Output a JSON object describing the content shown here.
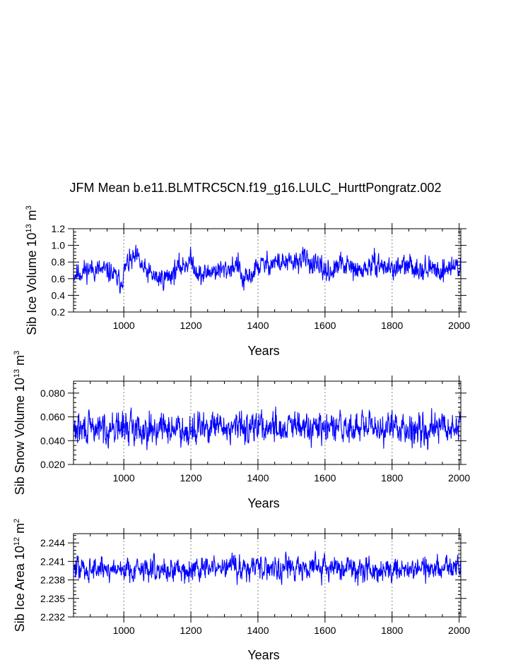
{
  "title": "JFM Mean b.e11.BLMTRC5CN.f19_g16.LULC_HurttPongratz.002",
  "line_color": "#0000ff",
  "grid_color": "#999999",
  "chart_data": [
    {
      "type": "line",
      "series_name": "Sib Ice Volume",
      "xlabel": "Years",
      "ylabel_base": "Sib Ice Volume 10",
      "ylabel_exp": "13",
      "ylabel_unit": " m",
      "ylabel_unit_exp": "3",
      "xlim": [
        850,
        2005
      ],
      "ylim": [
        0.2,
        1.2
      ],
      "xticks": [
        1000,
        1200,
        1400,
        1600,
        1800,
        2000
      ],
      "xtick_labels": [
        "1000",
        "1200",
        "1400",
        "1600",
        "1800",
        "2000"
      ],
      "yticks": [
        0.2,
        0.4,
        0.6,
        0.8,
        1.0,
        1.2
      ],
      "ytick_labels": [
        "0.2",
        "0.4",
        "0.6",
        "0.8",
        "1.0",
        "1.2"
      ],
      "anchors": [
        [
          850,
          0.65
        ],
        [
          900,
          0.72
        ],
        [
          960,
          0.68
        ],
        [
          990,
          0.55
        ],
        [
          1010,
          0.78
        ],
        [
          1040,
          0.85
        ],
        [
          1060,
          0.7
        ],
        [
          1100,
          0.6
        ],
        [
          1130,
          0.62
        ],
        [
          1160,
          0.72
        ],
        [
          1200,
          0.82
        ],
        [
          1230,
          0.62
        ],
        [
          1260,
          0.7
        ],
        [
          1300,
          0.7
        ],
        [
          1340,
          0.78
        ],
        [
          1355,
          0.55
        ],
        [
          1375,
          0.62
        ],
        [
          1400,
          0.75
        ],
        [
          1450,
          0.8
        ],
        [
          1500,
          0.78
        ],
        [
          1540,
          0.85
        ],
        [
          1580,
          0.72
        ],
        [
          1620,
          0.68
        ],
        [
          1650,
          0.78
        ],
        [
          1700,
          0.68
        ],
        [
          1750,
          0.78
        ],
        [
          1800,
          0.72
        ],
        [
          1850,
          0.75
        ],
        [
          1900,
          0.72
        ],
        [
          1950,
          0.7
        ],
        [
          1980,
          0.75
        ],
        [
          2005,
          0.75
        ]
      ],
      "noise": 0.075,
      "seed": 11
    },
    {
      "type": "line",
      "series_name": "Sib Snow Volume",
      "xlabel": "Years",
      "ylabel_base": "Sib Snow Volume 10",
      "ylabel_exp": "13",
      "ylabel_unit": " m",
      "ylabel_unit_exp": "3",
      "xlim": [
        850,
        2005
      ],
      "ylim": [
        0.02,
        0.09
      ],
      "xticks": [
        1000,
        1200,
        1400,
        1600,
        1800,
        2000
      ],
      "xtick_labels": [
        "1000",
        "1200",
        "1400",
        "1600",
        "1800",
        "2000"
      ],
      "yticks": [
        0.02,
        0.04,
        0.06,
        0.08
      ],
      "ytick_labels": [
        "0.020",
        "0.040",
        "0.060",
        "0.080"
      ],
      "anchors": [
        [
          850,
          0.049
        ],
        [
          1000,
          0.051
        ],
        [
          1200,
          0.05
        ],
        [
          1400,
          0.052
        ],
        [
          1600,
          0.05
        ],
        [
          1800,
          0.051
        ],
        [
          2005,
          0.051
        ]
      ],
      "noise": 0.0075,
      "seed": 29
    },
    {
      "type": "line",
      "series_name": "Sib Ice Area",
      "xlabel": "Years",
      "ylabel_base": "Sib Ice Area 10",
      "ylabel_exp": "12",
      "ylabel_unit": " m",
      "ylabel_unit_exp": "2",
      "xlim": [
        850,
        2005
      ],
      "ylim": [
        2.232,
        2.2455
      ],
      "xticks": [
        1000,
        1200,
        1400,
        1600,
        1800,
        2000
      ],
      "xtick_labels": [
        "1000",
        "1200",
        "1400",
        "1600",
        "1800",
        "2000"
      ],
      "yticks": [
        2.232,
        2.235,
        2.238,
        2.241,
        2.244
      ],
      "ytick_labels": [
        "2.232",
        "2.235",
        "2.238",
        "2.241",
        "2.244"
      ],
      "anchors": [
        [
          850,
          2.2398
        ],
        [
          1000,
          2.2398
        ],
        [
          1200,
          2.2397
        ],
        [
          1400,
          2.2402
        ],
        [
          1600,
          2.2399
        ],
        [
          1800,
          2.2398
        ],
        [
          2005,
          2.24
        ]
      ],
      "noise": 0.00115,
      "seed": 47
    }
  ]
}
